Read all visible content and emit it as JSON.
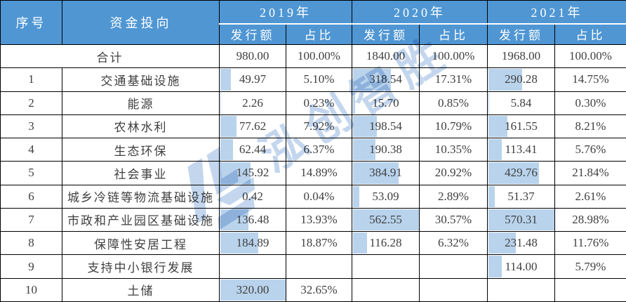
{
  "header": {
    "serial": "序号",
    "category": "资金投向",
    "years": [
      "2019年",
      "2020年",
      "2021年"
    ],
    "sub_labels": [
      "发行额",
      "占比",
      "发行额",
      "占比",
      "发行额",
      "占比"
    ]
  },
  "total_row": {
    "label": "合计",
    "cells": [
      {
        "amount": "980.00",
        "share": "100.00%"
      },
      {
        "amount": "1840.00",
        "share": "100.00%"
      },
      {
        "amount": "1968.00",
        "share": "100.00%"
      }
    ]
  },
  "rows": [
    {
      "no": "1",
      "category": "交通基础设施",
      "cells": [
        {
          "amount": "49.97",
          "share": "5.10%"
        },
        {
          "amount": "318.54",
          "share": "17.31%"
        },
        {
          "amount": "290.28",
          "share": "14.75%"
        }
      ]
    },
    {
      "no": "2",
      "category": "能源",
      "cells": [
        {
          "amount": "2.26",
          "share": "0.23%"
        },
        {
          "amount": "15.70",
          "share": "0.85%"
        },
        {
          "amount": "5.84",
          "share": "0.30%"
        }
      ]
    },
    {
      "no": "3",
      "category": "农林水利",
      "cells": [
        {
          "amount": "77.62",
          "share": "7.92%"
        },
        {
          "amount": "198.54",
          "share": "10.79%"
        },
        {
          "amount": "161.55",
          "share": "8.21%"
        }
      ]
    },
    {
      "no": "4",
      "category": "生态环保",
      "cells": [
        {
          "amount": "62.44",
          "share": "6.37%"
        },
        {
          "amount": "190.38",
          "share": "10.35%"
        },
        {
          "amount": "113.41",
          "share": "5.76%"
        }
      ]
    },
    {
      "no": "5",
      "category": "社会事业",
      "cells": [
        {
          "amount": "145.92",
          "share": "14.89%"
        },
        {
          "amount": "384.91",
          "share": "20.92%"
        },
        {
          "amount": "429.76",
          "share": "21.84%"
        }
      ]
    },
    {
      "no": "6",
      "category": "城乡冷链等物流基础设施",
      "cells": [
        {
          "amount": "0.42",
          "share": "0.04%"
        },
        {
          "amount": "53.09",
          "share": "2.89%"
        },
        {
          "amount": "51.37",
          "share": "2.61%"
        }
      ]
    },
    {
      "no": "7",
      "category": "市政和产业园区基础设施",
      "cells": [
        {
          "amount": "136.48",
          "share": "13.93%"
        },
        {
          "amount": "562.55",
          "share": "30.57%"
        },
        {
          "amount": "570.31",
          "share": "28.98%"
        }
      ]
    },
    {
      "no": "8",
      "category": "保障性安居工程",
      "cells": [
        {
          "amount": "184.89",
          "share": "18.87%"
        },
        {
          "amount": "116.28",
          "share": "6.32%"
        },
        {
          "amount": "231.48",
          "share": "11.76%"
        }
      ]
    },
    {
      "no": "9",
      "category": "支持中小银行发展",
      "cells": [
        {
          "amount": "",
          "share": ""
        },
        {
          "amount": "",
          "share": ""
        },
        {
          "amount": "114.00",
          "share": "5.79%"
        }
      ]
    },
    {
      "no": "10",
      "category": "土储",
      "cells": [
        {
          "amount": "320.00",
          "share": "32.65%"
        },
        {
          "amount": "",
          "share": ""
        },
        {
          "amount": "",
          "share": ""
        }
      ]
    }
  ],
  "watermark": {
    "text": "泓创智胜"
  },
  "colors": {
    "header_bg": "#4f96d3",
    "header_text": "#ffffff",
    "body_text": "#3f3f3f",
    "data_bar": "#b9d3ec",
    "border": "#000000",
    "watermark": "#bdd2eb"
  }
}
